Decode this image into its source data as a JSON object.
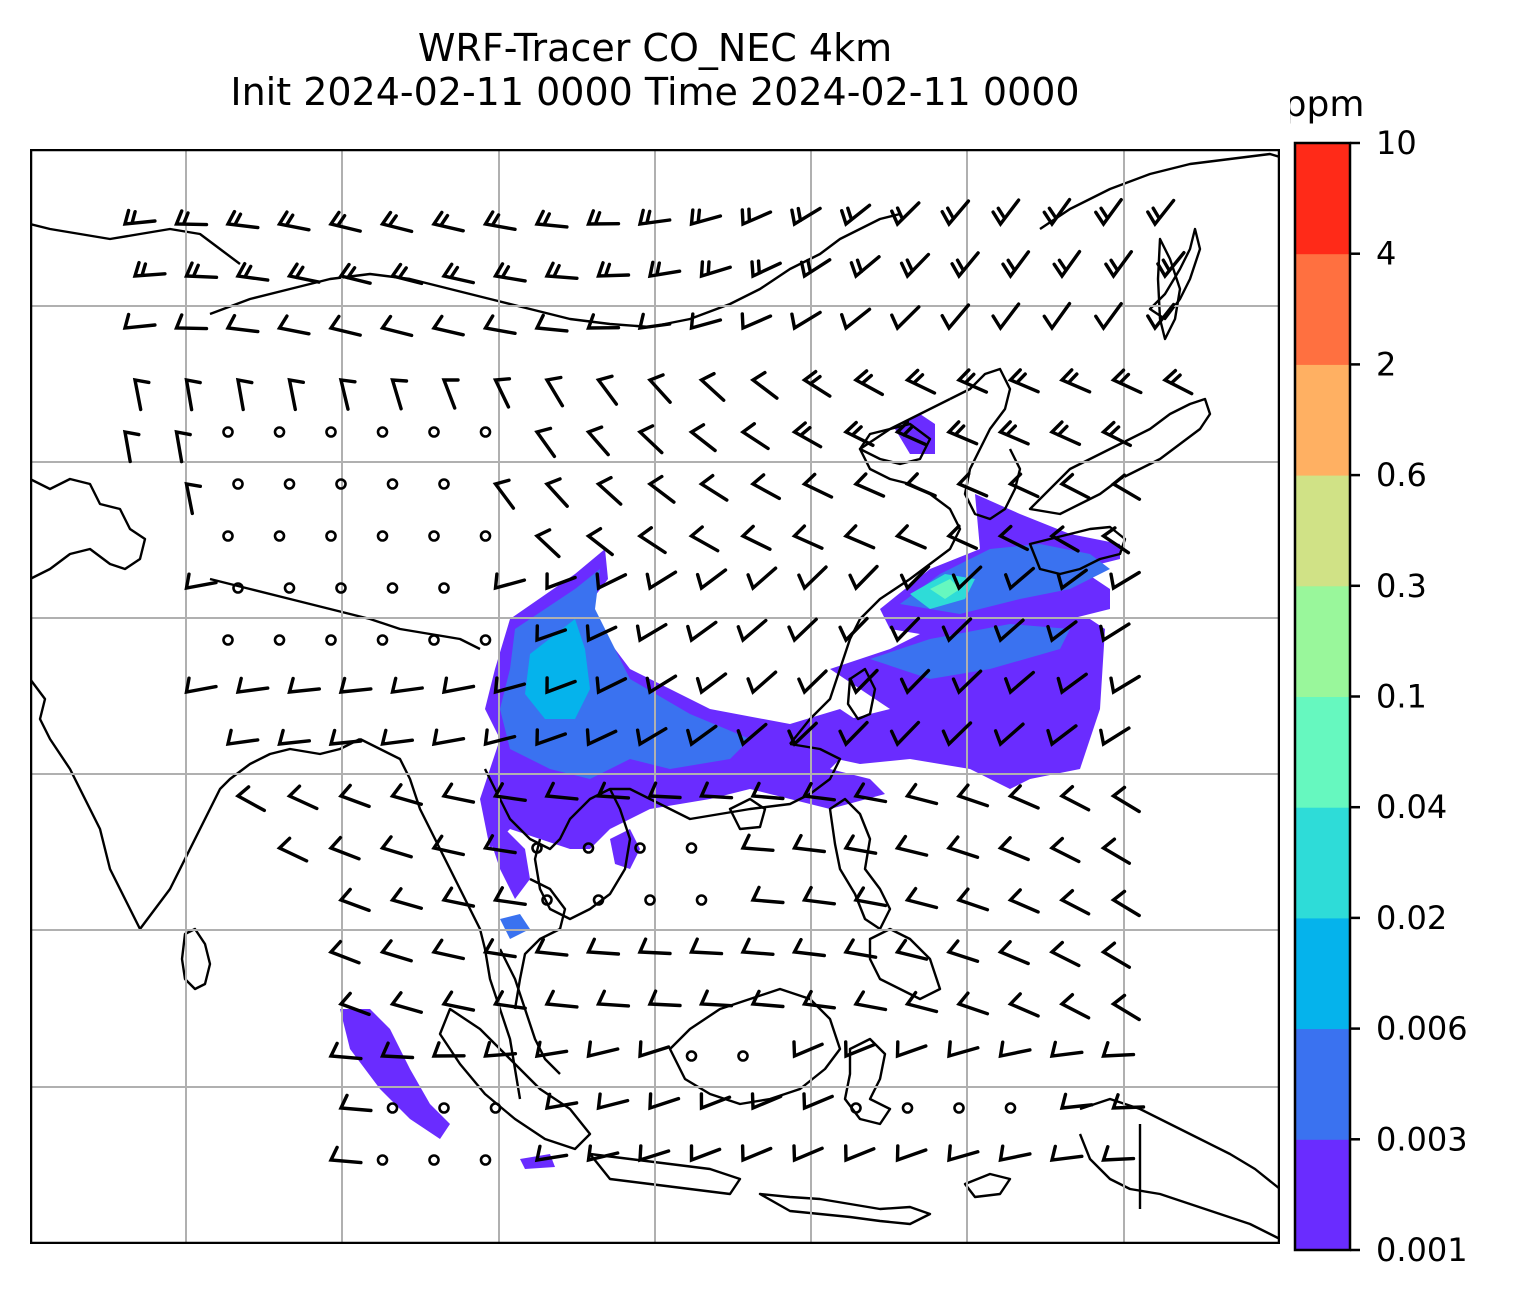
{
  "title": {
    "line1": "WRF-Tracer CO_NEC 4km",
    "line2": "Init 2024-02-11 0000 Time 2024-02-11 0000"
  },
  "colorbar": {
    "unit": "ppm",
    "levels": [
      "0.001",
      "0.003",
      "0.006",
      "0.02",
      "0.04",
      "0.1",
      "0.3",
      "0.6",
      "2",
      "4",
      "10"
    ],
    "colors": [
      "#6a2cff",
      "#3a72f0",
      "#05b3ec",
      "#2edcd8",
      "#66f8bf",
      "#99f79b",
      "#d0e286",
      "#ffb062",
      "#ff7040",
      "#ff2a18"
    ]
  },
  "map": {
    "gridlines": true,
    "coastline_color": "#000000",
    "grid_color": "#b0b0b0"
  }
}
